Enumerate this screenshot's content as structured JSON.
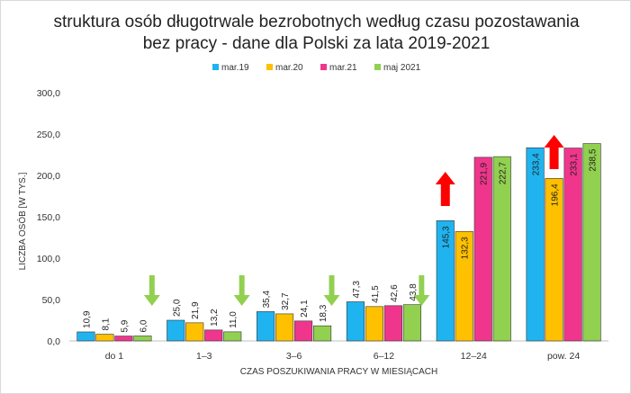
{
  "chart_data": {
    "type": "bar",
    "title": "struktura osób długotrwale bezrobotnych według czasu pozostawania",
    "subtitle": "bez pracy - dane dla Polski za lata 2019-2021",
    "xlabel": "CZAS POSZUKIWANIA PRACY W MIESIĄCACH",
    "ylabel": "LICZBA OSÓB [W TYS.]",
    "ylim": [
      0,
      300
    ],
    "yticks": [
      "0,0",
      "50,0",
      "100,0",
      "150,0",
      "200,0",
      "250,0",
      "300,0"
    ],
    "grid": false,
    "legend_position": "top",
    "categories": [
      "do 1",
      "1–3",
      "3–6",
      "6–12",
      "12–24",
      "pow. 24"
    ],
    "series": [
      {
        "name": "mar.19",
        "color": "#1fb4f0",
        "values": [
          10.9,
          25.0,
          35.4,
          47.3,
          145.3,
          233.4
        ],
        "labels": [
          "10,9",
          "25,0",
          "35,4",
          "47,3",
          "145,3",
          "233,4"
        ]
      },
      {
        "name": "mar.20",
        "color": "#ffc000",
        "values": [
          8.1,
          21.9,
          32.7,
          41.5,
          132.3,
          196.4
        ],
        "labels": [
          "8,1",
          "21,9",
          "32,7",
          "41,5",
          "132,3",
          "196,4"
        ]
      },
      {
        "name": "mar.21",
        "color": "#f0368c",
        "values": [
          5.9,
          13.2,
          24.1,
          42.6,
          221.9,
          233.1
        ],
        "labels": [
          "5,9",
          "13,2",
          "24,1",
          "42,6",
          "221,9",
          "233,1"
        ]
      },
      {
        "name": "maj 2021",
        "color": "#92d050",
        "values": [
          6.0,
          11.0,
          18.3,
          43.8,
          222.7,
          238.5
        ],
        "labels": [
          "6,0",
          "11,0",
          "18,3",
          "43,8",
          "222,7",
          "238,5"
        ]
      }
    ],
    "annotations": [
      {
        "type": "arrow-down",
        "color": "#92d050",
        "category": "do 1"
      },
      {
        "type": "arrow-down",
        "color": "#92d050",
        "category": "1–3"
      },
      {
        "type": "arrow-down",
        "color": "#92d050",
        "category": "3–6"
      },
      {
        "type": "arrow-down",
        "color": "#92d050",
        "category": "6–12"
      },
      {
        "type": "arrow-up",
        "color": "#ff0000",
        "category": "12–24"
      },
      {
        "type": "arrow-up",
        "color": "#ff0000",
        "category": "pow. 24"
      }
    ]
  }
}
